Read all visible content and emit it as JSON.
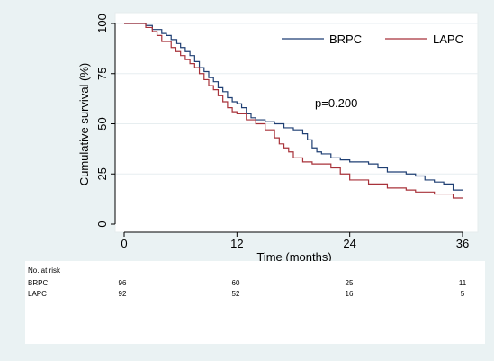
{
  "chart_data": {
    "type": "line",
    "xlabel": "Time (months)",
    "ylabel": "Cumulative survival (%)",
    "xlim": [
      0,
      36
    ],
    "ylim": [
      0,
      100
    ],
    "xticks": [
      0,
      12,
      24,
      36
    ],
    "yticks": [
      0,
      25,
      50,
      75,
      100
    ],
    "grid": "horizontal",
    "legend_position": "top-right",
    "step": true,
    "annotation": "p=0.200",
    "series": [
      {
        "name": "BRPC",
        "color": "#1f3f73",
        "x": [
          0,
          2.3,
          3,
          4,
          4.5,
          5,
          5.6,
          6,
          6.5,
          7,
          7.5,
          8,
          8.5,
          9,
          9.5,
          10,
          10.5,
          11,
          11.5,
          12,
          12.5,
          13,
          13.5,
          14,
          15,
          16,
          17,
          18,
          19,
          19.5,
          20,
          20.5,
          21,
          22,
          23,
          24,
          26,
          27,
          28,
          30,
          31,
          32,
          33,
          34,
          35,
          36
        ],
        "values": [
          100,
          99,
          97,
          95,
          94,
          92,
          90,
          88,
          86,
          84,
          81,
          78,
          76,
          73,
          71,
          68,
          66,
          63,
          61,
          60,
          58,
          55,
          53,
          52,
          51,
          50,
          48,
          47,
          45,
          42,
          38,
          36,
          35,
          33,
          32,
          31,
          30,
          28,
          26,
          25,
          24,
          22,
          21,
          20,
          17,
          17
        ]
      },
      {
        "name": "LAPC",
        "color": "#a8323a",
        "x": [
          0,
          2.3,
          3,
          3.5,
          4,
          5,
          5.5,
          6,
          6.5,
          7,
          7.5,
          8,
          8.5,
          9,
          9.5,
          10,
          10.5,
          11,
          11.5,
          12,
          13,
          14,
          15,
          16,
          16.5,
          17,
          17.5,
          18,
          19,
          20,
          22,
          23,
          24,
          26,
          28,
          30,
          31,
          33,
          35,
          36
        ],
        "values": [
          100,
          98,
          96,
          94,
          91,
          88,
          86,
          84,
          82,
          80,
          78,
          75,
          72,
          69,
          67,
          64,
          61,
          58,
          56,
          55,
          52,
          50,
          47,
          43,
          40,
          38,
          36,
          33,
          31,
          30,
          28,
          25,
          22,
          20,
          18,
          17,
          16,
          15,
          13,
          13
        ]
      }
    ]
  },
  "risk_table": {
    "header": "No. at risk",
    "rows": [
      {
        "label": "BRPC",
        "counts": [
          "96",
          "60",
          "25",
          "11"
        ]
      },
      {
        "label": "LAPC",
        "counts": [
          "92",
          "52",
          "16",
          "5"
        ]
      }
    ]
  },
  "colors": {
    "outer_background": "#eaf2f3",
    "plot_background": "#ffffff",
    "grid": "#e7eef0"
  }
}
